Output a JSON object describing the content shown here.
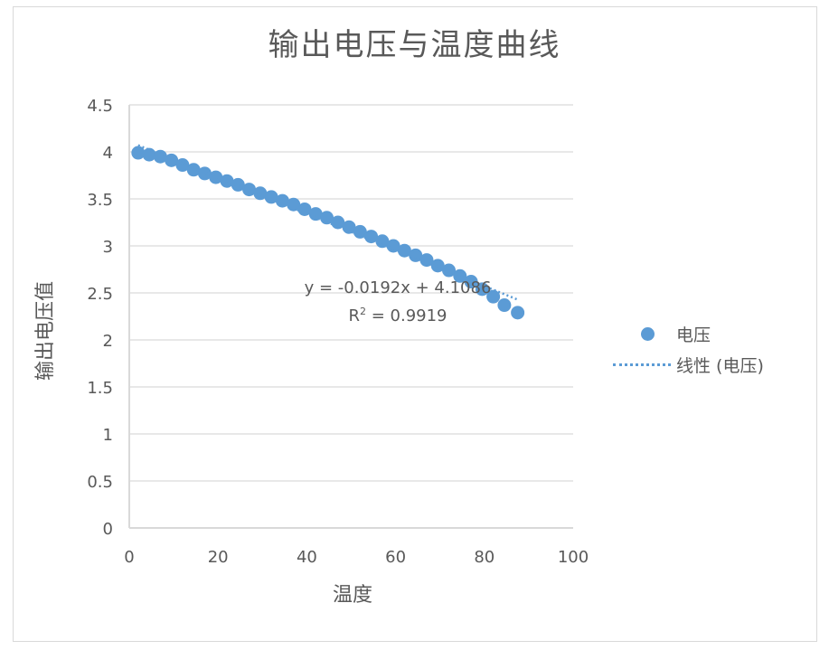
{
  "chart": {
    "title": "输出电压与温度曲线",
    "x_axis_title": "温度",
    "y_axis_title": "输出电压值",
    "trendline": {
      "equation": "y = -0.0192x + 4.1086",
      "r_squared_label": "R",
      "r_squared_sup": "2",
      "r_squared_value": " = 0.9919"
    },
    "legend": [
      {
        "label": "电压",
        "kind": "marker"
      },
      {
        "label": "线性 (电压)",
        "kind": "dotted-line"
      }
    ],
    "colors": {
      "series": "#5b9bd5",
      "grid": "#d9d9d9",
      "text": "#595959"
    }
  },
  "chart_data": {
    "type": "scatter",
    "title": "输出电压与温度曲线",
    "xlabel": "温度",
    "ylabel": "输出电压值",
    "xlim": [
      0,
      100
    ],
    "ylim": [
      0,
      4.5
    ],
    "x_ticks": [
      "0",
      "20",
      "40",
      "60",
      "80",
      "100"
    ],
    "y_ticks": [
      "0",
      "0.5",
      "1",
      "1.5",
      "2",
      "2.5",
      "3",
      "3.5",
      "4",
      "4.5"
    ],
    "grid": true,
    "legend_position": "right",
    "series": [
      {
        "name": "电压",
        "x": [
          2,
          4.5,
          7,
          9.5,
          12,
          14.5,
          17,
          19.5,
          22,
          24.5,
          27,
          29.5,
          32,
          34.5,
          37,
          39.5,
          42,
          44.5,
          47,
          49.5,
          52,
          54.5,
          57,
          59.5,
          62,
          64.5,
          67,
          69.5,
          72,
          74.5,
          77,
          79.5,
          82,
          84.5,
          87.5
        ],
        "y": [
          3.99,
          3.97,
          3.95,
          3.91,
          3.86,
          3.81,
          3.77,
          3.73,
          3.69,
          3.65,
          3.6,
          3.56,
          3.52,
          3.48,
          3.44,
          3.39,
          3.34,
          3.3,
          3.25,
          3.2,
          3.15,
          3.1,
          3.05,
          3.0,
          2.95,
          2.9,
          2.85,
          2.79,
          2.74,
          2.68,
          2.62,
          2.54,
          2.46,
          2.37,
          2.29
        ]
      },
      {
        "name": "线性 (电压)",
        "type": "trendline-linear",
        "slope": -0.0192,
        "intercept": 4.1086,
        "r_squared": 0.9919,
        "x_range": [
          2,
          87.5
        ]
      }
    ],
    "annotations": [
      "y = -0.0192x + 4.1086",
      "R² = 0.9919"
    ]
  }
}
